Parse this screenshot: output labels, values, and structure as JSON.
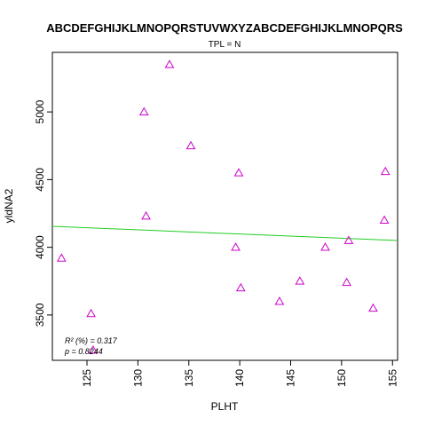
{
  "chart_data": {
    "type": "scatter",
    "title": "ABCDEFGHIJKLMNOPQRSTUVWXYZABCDEFGHIJKLMNOPQRS",
    "subtitle": "TPL = N",
    "xlabel": "PLHT",
    "ylabel": "yldNA2",
    "xlim": [
      121.6,
      155.5
    ],
    "ylim": [
      3165,
      5440
    ],
    "x_ticks": [
      125,
      130,
      135,
      140,
      145,
      150,
      155
    ],
    "y_ticks": [
      3500,
      4000,
      4500,
      5000
    ],
    "grid": false,
    "legend": "none",
    "points": [
      {
        "x": 122.5,
        "y": 3920
      },
      {
        "x": 125.4,
        "y": 3510
      },
      {
        "x": 125.6,
        "y": 3240
      },
      {
        "x": 130.6,
        "y": 5000
      },
      {
        "x": 130.8,
        "y": 4230
      },
      {
        "x": 133.1,
        "y": 5350
      },
      {
        "x": 135.2,
        "y": 4750
      },
      {
        "x": 139.6,
        "y": 4000
      },
      {
        "x": 139.9,
        "y": 4550
      },
      {
        "x": 140.1,
        "y": 3700
      },
      {
        "x": 143.9,
        "y": 3600
      },
      {
        "x": 145.9,
        "y": 3750
      },
      {
        "x": 148.4,
        "y": 4000
      },
      {
        "x": 150.5,
        "y": 3740
      },
      {
        "x": 150.7,
        "y": 4050
      },
      {
        "x": 153.1,
        "y": 3550
      },
      {
        "x": 154.2,
        "y": 4200
      },
      {
        "x": 154.3,
        "y": 4560
      }
    ],
    "fit_line": {
      "x": [
        121.6,
        155.5
      ],
      "y": [
        4155,
        4050
      ]
    },
    "colors": {
      "points": "#cc00cc",
      "fit_line": "#22cc22",
      "axes": "#000000"
    },
    "annotations": {
      "r2_label": "R² (%) = 0.317",
      "p_label": "p = 0.8244"
    }
  }
}
